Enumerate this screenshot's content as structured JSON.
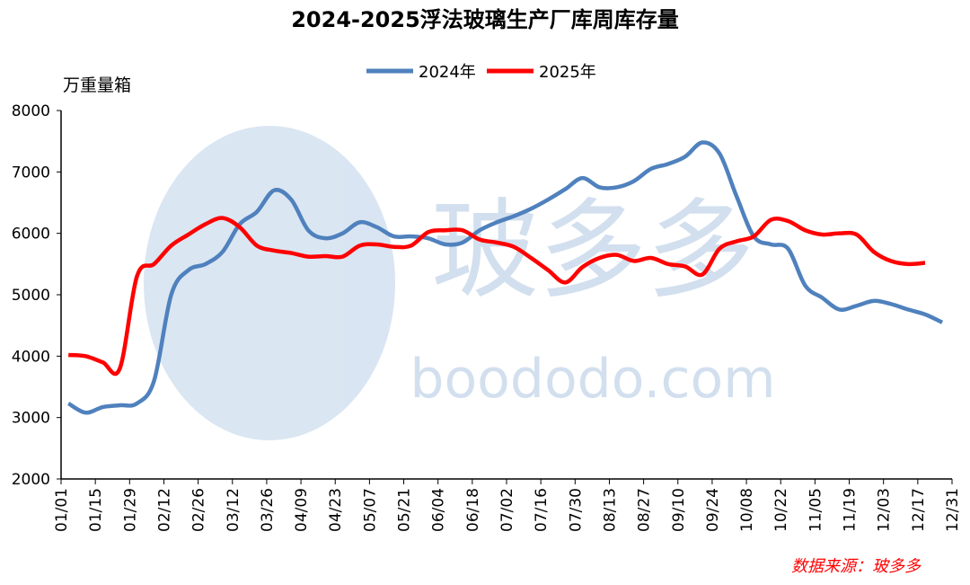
{
  "chart_data": {
    "type": "line",
    "title": "2024-2025浮法玻璃生产厂库周库存量",
    "y_label": "万重量箱",
    "source": "数据来源：玻多多",
    "watermark": [
      "玻多多",
      "boododo.com"
    ],
    "x": [
      3,
      10,
      17,
      24,
      31,
      38,
      45,
      52,
      59,
      66,
      73,
      80,
      87,
      94,
      101,
      108,
      115,
      122,
      129,
      136,
      143,
      150,
      157,
      164,
      171,
      178,
      185,
      192,
      199,
      206,
      213,
      220,
      227,
      234,
      241,
      248,
      255,
      262,
      269,
      276,
      283,
      290,
      297,
      304,
      311,
      318,
      325,
      332,
      339,
      346,
      353,
      360
    ],
    "xlim": [
      0,
      364
    ],
    "xticks": [
      {
        "value": 0,
        "label": "01/01"
      },
      {
        "value": 14,
        "label": "01/15"
      },
      {
        "value": 28,
        "label": "01/29"
      },
      {
        "value": 42,
        "label": "02/12"
      },
      {
        "value": 56,
        "label": "02/26"
      },
      {
        "value": 70,
        "label": "03/12"
      },
      {
        "value": 84,
        "label": "03/26"
      },
      {
        "value": 98,
        "label": "04/09"
      },
      {
        "value": 112,
        "label": "04/23"
      },
      {
        "value": 126,
        "label": "05/07"
      },
      {
        "value": 140,
        "label": "05/21"
      },
      {
        "value": 154,
        "label": "06/04"
      },
      {
        "value": 168,
        "label": "06/18"
      },
      {
        "value": 182,
        "label": "07/02"
      },
      {
        "value": 196,
        "label": "07/16"
      },
      {
        "value": 210,
        "label": "07/30"
      },
      {
        "value": 224,
        "label": "08/13"
      },
      {
        "value": 238,
        "label": "08/27"
      },
      {
        "value": 252,
        "label": "09/10"
      },
      {
        "value": 266,
        "label": "09/24"
      },
      {
        "value": 280,
        "label": "10/08"
      },
      {
        "value": 294,
        "label": "10/22"
      },
      {
        "value": 308,
        "label": "11/05"
      },
      {
        "value": 322,
        "label": "11/19"
      },
      {
        "value": 336,
        "label": "12/03"
      },
      {
        "value": 350,
        "label": "12/17"
      },
      {
        "value": 364,
        "label": "12/31"
      }
    ],
    "ylim": [
      2000,
      8000
    ],
    "yticks": [
      2000,
      3000,
      4000,
      5000,
      6000,
      7000,
      8000
    ],
    "legend": "top",
    "series": [
      {
        "name": "2024年",
        "color": "#4f81bd",
        "values": [
          3230,
          3080,
          3170,
          3200,
          3230,
          3600,
          5000,
          5400,
          5500,
          5700,
          6150,
          6350,
          6700,
          6550,
          6050,
          5920,
          6000,
          6180,
          6100,
          5950,
          5950,
          5920,
          5820,
          5850,
          6050,
          6180,
          6280,
          6400,
          6550,
          6720,
          6900,
          6750,
          6750,
          6850,
          7050,
          7130,
          7250,
          7480,
          7300,
          6600,
          5950,
          5820,
          5750,
          5150,
          4950,
          4760,
          4820,
          4900,
          4850,
          4760,
          4680,
          4550
        ]
      },
      {
        "name": "2025年",
        "color": "#ff0000",
        "values": [
          4020,
          4000,
          3900,
          3800,
          5300,
          5500,
          5800,
          5980,
          6150,
          6250,
          6100,
          5800,
          5720,
          5680,
          5620,
          5630,
          5620,
          5800,
          5820,
          5780,
          5800,
          6020,
          6050,
          6050,
          5900,
          5850,
          5780,
          5600,
          5400,
          5200,
          5450,
          5600,
          5650,
          5550,
          5600,
          5500,
          5460,
          5330,
          5750,
          5870,
          5950,
          6220,
          6200,
          6050,
          5980,
          6000,
          5980,
          5700,
          5550,
          5500,
          5520,
          null
        ]
      }
    ]
  }
}
